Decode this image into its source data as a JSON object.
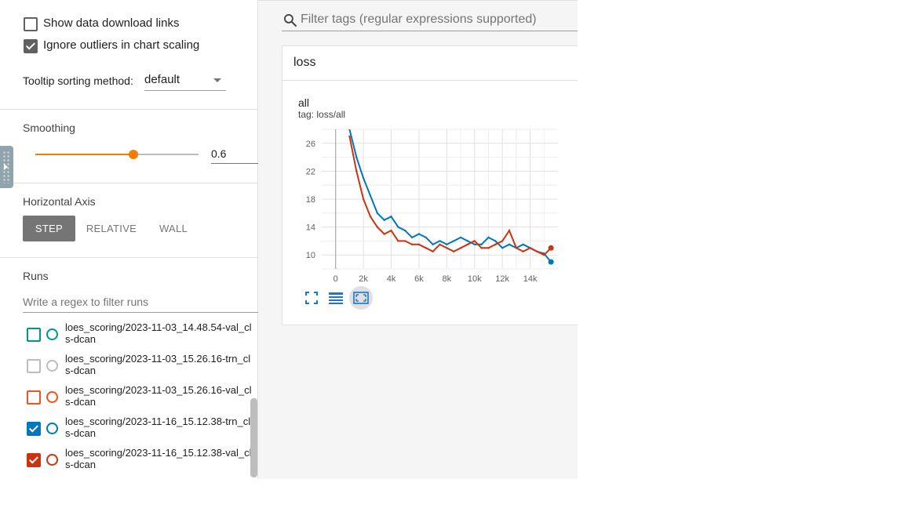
{
  "sidebar": {
    "show_download_links": {
      "label": "Show data download links",
      "checked": false
    },
    "ignore_outliers": {
      "label": "Ignore outliers in chart scaling",
      "checked": true
    },
    "tooltip_sorting": {
      "label": "Tooltip sorting method:",
      "value": "default"
    },
    "smoothing": {
      "title": "Smoothing",
      "value": "0.6",
      "fraction": 0.6
    },
    "horizontal_axis": {
      "title": "Horizontal Axis",
      "options": [
        "STEP",
        "RELATIVE",
        "WALL"
      ],
      "selected": "STEP"
    },
    "runs": {
      "title": "Runs",
      "filter_placeholder": "Write a regex to filter runs",
      "items": [
        {
          "label": "loes_scoring/2023-11-03_14.48.54-val_cls-dcan",
          "color": "#009688",
          "checked": false
        },
        {
          "label": "loes_scoring/2023-11-03_15.26.16-trn_cls-dcan",
          "color": "#bdbdbd",
          "checked": false
        },
        {
          "label": "loes_scoring/2023-11-03_15.26.16-val_cls-dcan",
          "color": "#f4511e",
          "checked": false
        },
        {
          "label": "loes_scoring/2023-11-16_15.12.38-trn_cls-dcan",
          "color": "#0077bb",
          "checked": true
        },
        {
          "label": "loes_scoring/2023-11-16_15.12.38-val_cls-dcan",
          "color": "#cc3311",
          "checked": true
        }
      ]
    }
  },
  "search": {
    "placeholder": "Filter tags (regular expressions supported)",
    "icon": "search-icon"
  },
  "card": {
    "title": "loss"
  },
  "chart": {
    "title": "all",
    "tag": "tag: loss/all",
    "toolbar": [
      "fullscreen-icon",
      "data-table-icon",
      "fit-domain-icon"
    ]
  },
  "chart_data": {
    "type": "line",
    "title": "all",
    "subtitle": "tag: loss/all",
    "xlabel": "",
    "ylabel": "",
    "x_ticks": [
      "0",
      "2k",
      "4k",
      "6k",
      "8k",
      "10k",
      "12k",
      "14k"
    ],
    "y_ticks": [
      "10",
      "14",
      "18",
      "22",
      "26"
    ],
    "xlim": [
      -1000,
      16000
    ],
    "ylim": [
      8,
      28
    ],
    "grid": true,
    "series": [
      {
        "name": "loes_scoring/2023-11-16_15.12.38-trn_cls-dcan",
        "color": "#0077bb",
        "x": [
          1000,
          1500,
          2000,
          2500,
          3000,
          3500,
          4000,
          4500,
          5000,
          5500,
          6000,
          6500,
          7000,
          7500,
          8000,
          8500,
          9000,
          9500,
          10000,
          10500,
          11000,
          11500,
          12000,
          12500,
          13000,
          13500,
          14000,
          14500,
          15000,
          15500
        ],
        "y": [
          28,
          24,
          21,
          18.5,
          16,
          15,
          15.5,
          14,
          13.5,
          12.5,
          13,
          12.5,
          11.5,
          12,
          11.5,
          12,
          12.5,
          12,
          11.5,
          11.5,
          12.5,
          12,
          11,
          11.5,
          11,
          11.5,
          11,
          10.5,
          10.2,
          9
        ]
      },
      {
        "name": "loes_scoring/2023-11-16_15.12.38-val_cls-dcan",
        "color": "#cc3311",
        "x": [
          1000,
          1500,
          2000,
          2500,
          3000,
          3500,
          4000,
          4500,
          5000,
          5500,
          6000,
          6500,
          7000,
          7500,
          8000,
          8500,
          9000,
          9500,
          10000,
          10500,
          11000,
          11500,
          12000,
          12500,
          13000,
          13500,
          14000,
          14500,
          15000,
          15500
        ],
        "y": [
          27,
          22,
          18,
          15.5,
          14,
          13,
          13.5,
          12,
          12,
          11.5,
          11.5,
          11,
          10.5,
          11.5,
          11,
          10.5,
          11,
          11.5,
          12,
          11,
          11,
          11.5,
          12,
          13.5,
          11,
          10.5,
          11,
          10.5,
          10,
          11
        ]
      }
    ]
  }
}
